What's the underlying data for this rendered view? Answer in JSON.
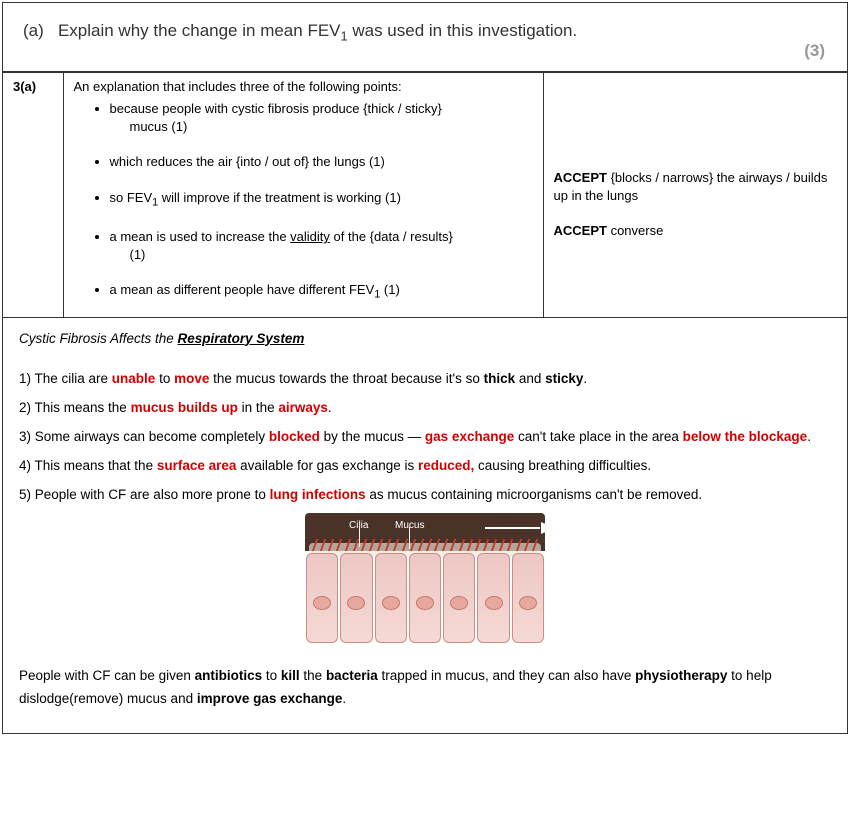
{
  "question": {
    "label": "(a)",
    "text_before": "Explain why the change in mean FEV",
    "sub": "1",
    "text_after": " was used in this investigation.",
    "marks": "(3)"
  },
  "ms": {
    "qnum": "3(a)",
    "intro": "An explanation that includes three of the following points:",
    "points": [
      {
        "text": "because people with cystic fibrosis produce {thick / sticky}",
        "cont": "mucus (1)"
      },
      {
        "text": "which reduces the air {into / out of} the lungs (1)"
      },
      {
        "text_html": "so FEV<sub>1</sub> will improve if the treatment is working  (1)"
      },
      {
        "text_html": "a mean is used to increase the <u>validity</u> of the {data / results}",
        "cont": "(1)"
      },
      {
        "text_html": "a mean as different people have different FEV<sub>1</sub>  (1)"
      }
    ],
    "notes": [
      {
        "bold": "ACCEPT",
        "rest": " {blocks / narrows} the airways / builds up in the lungs"
      },
      {
        "bold": "ACCEPT",
        "rest": " converse"
      }
    ]
  },
  "notes": {
    "title_pre": "Cystic Fibrosis Affects the ",
    "title_udl": "Respiratory System",
    "lines": [
      [
        {
          "t": "1) The cilia are "
        },
        {
          "t": "unable",
          "cls": "bold red"
        },
        {
          "t": " to "
        },
        {
          "t": "move",
          "cls": "bold red"
        },
        {
          "t": " the mucus towards the throat because it's so "
        },
        {
          "t": "thick",
          "cls": "bold"
        },
        {
          "t": " and "
        },
        {
          "t": "sticky",
          "cls": "bold"
        },
        {
          "t": "."
        }
      ],
      [
        {
          "t": "2) This means the "
        },
        {
          "t": "mucus builds up",
          "cls": "bold red"
        },
        {
          "t": " in the "
        },
        {
          "t": "airways",
          "cls": "bold red"
        },
        {
          "t": "."
        }
      ],
      [
        {
          "t": "3) Some airways can become completely "
        },
        {
          "t": "blocked",
          "cls": "bold red"
        },
        {
          "t": " by the mucus — "
        },
        {
          "t": "gas exchange",
          "cls": "bold red"
        },
        {
          "t": " can't take place in the area "
        },
        {
          "t": "below the blockage",
          "cls": "bold red"
        },
        {
          "t": "."
        }
      ],
      [
        {
          "t": "4) This means that the "
        },
        {
          "t": "surface area",
          "cls": "bold red"
        },
        {
          "t": " available for gas exchange is "
        },
        {
          "t": "reduced,",
          "cls": "bold red"
        },
        {
          "t": " causing breathing difficulties."
        }
      ],
      [
        {
          "t": "5) People with CF are also more prone to "
        },
        {
          "t": "lung infections",
          "cls": "bold red"
        },
        {
          "t": " as mucus containing microorganisms can't be removed."
        }
      ]
    ],
    "diagram": {
      "label_cilia": "Cilia",
      "label_mucus": "Mucus"
    },
    "footer": [
      {
        "t": "People with CF can be given "
      },
      {
        "t": "antibiotics",
        "cls": "bold"
      },
      {
        "t": " to "
      },
      {
        "t": "kill",
        "cls": "bold"
      },
      {
        "t": " the "
      },
      {
        "t": "bacteria",
        "cls": "bold"
      },
      {
        "t": " trapped in mucus, and they can also have "
      },
      {
        "t": "physiotherapy",
        "cls": "bold"
      },
      {
        "t": " to help dislodge(remove) mucus and "
      },
      {
        "t": "improve gas exchange",
        "cls": "bold"
      },
      {
        "t": "."
      }
    ]
  }
}
